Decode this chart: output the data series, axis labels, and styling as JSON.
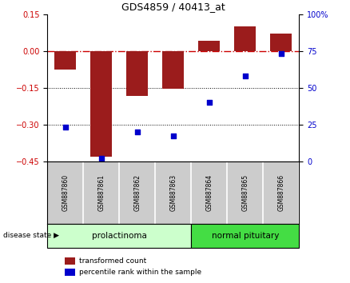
{
  "title": "GDS4859 / 40413_at",
  "samples": [
    "GSM887860",
    "GSM887861",
    "GSM887862",
    "GSM887863",
    "GSM887864",
    "GSM887865",
    "GSM887866"
  ],
  "transformed_count": [
    -0.075,
    -0.43,
    -0.185,
    -0.155,
    0.04,
    0.1,
    0.07
  ],
  "percentile_rank": [
    23,
    2,
    20,
    17,
    40,
    58,
    73
  ],
  "ylim_left": [
    -0.45,
    0.15
  ],
  "ylim_right": [
    0,
    100
  ],
  "yticks_left": [
    0.15,
    0.0,
    -0.15,
    -0.3,
    -0.45
  ],
  "yticks_right": [
    100,
    75,
    50,
    25,
    0
  ],
  "ytick_right_labels": [
    "100%",
    "75",
    "50",
    "25",
    "0"
  ],
  "hlines": [
    -0.15,
    -0.3
  ],
  "bar_color": "#9b1c1c",
  "dot_color": "#0000cc",
  "zero_line_color": "#cc0000",
  "hline_color": "#000000",
  "legend_bar_label": "transformed count",
  "legend_dot_label": "percentile rank within the sample",
  "disease_state_label": "disease state",
  "group1_label": "prolactinoma",
  "group2_label": "normal pituitary",
  "group1_color": "#ccffcc",
  "group2_color": "#44dd44",
  "sample_box_color": "#cccccc",
  "bg_color": "#ffffff"
}
